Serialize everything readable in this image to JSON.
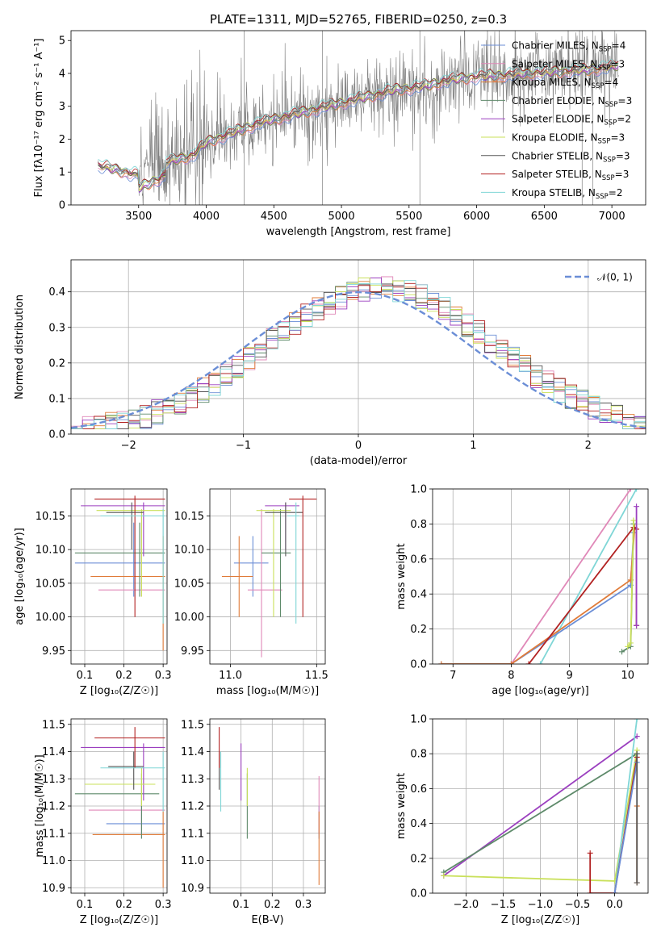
{
  "figure_title": "PLATE=1311, MJD=52765, FIBERID=0250, z=0.3",
  "models": [
    {
      "label": "Chabrier MILES",
      "nssp": "4",
      "color": "#6b8ed6"
    },
    {
      "label": "Salpeter MILES",
      "nssp": "3",
      "color": "#e088b8"
    },
    {
      "label": "Kroupa MILES",
      "nssp": "4",
      "color": "#e07b39"
    },
    {
      "label": "Chabrier ELODIE",
      "nssp": "3",
      "color": "#5e8a6a"
    },
    {
      "label": "Salpeter ELODIE",
      "nssp": "2",
      "color": "#9b3fbf"
    },
    {
      "label": "Kroupa ELODIE",
      "nssp": "3",
      "color": "#c9e05a"
    },
    {
      "label": "Chabrier STELIB",
      "nssp": "3",
      "color": "#555555"
    },
    {
      "label": "Salpeter STELIB",
      "nssp": "3",
      "color": "#b22222"
    },
    {
      "label": "Kroupa STELIB",
      "nssp": "2",
      "color": "#7fd6d6"
    }
  ],
  "chart_data": [
    {
      "type": "line",
      "xlabel": "wavelength [Angstrom, rest frame]",
      "ylabel": "Flux [fλ10⁻¹⁷ erg cm⁻² s⁻¹ A⁻¹]",
      "xlim": [
        3000,
        7250
      ],
      "ylim": [
        0,
        5.3
      ],
      "xticks": [
        3500,
        4000,
        4500,
        5000,
        5500,
        6000,
        6500,
        7000
      ],
      "yticks": [
        0,
        1,
        2,
        3,
        4,
        5
      ],
      "grid": false,
      "legend": "top-right",
      "continuum": [
        [
          3200,
          1.2
        ],
        [
          3500,
          0.9
        ],
        [
          3700,
          1.3
        ],
        [
          3900,
          1.5
        ],
        [
          4000,
          1.9
        ],
        [
          4200,
          2.2
        ],
        [
          4400,
          2.5
        ],
        [
          4600,
          2.7
        ],
        [
          4800,
          2.9
        ],
        [
          5000,
          3.1
        ],
        [
          5200,
          3.3
        ],
        [
          5400,
          3.5
        ],
        [
          5600,
          3.6
        ],
        [
          5800,
          3.8
        ],
        [
          6000,
          3.9
        ],
        [
          6200,
          3.95
        ],
        [
          6400,
          4.0
        ],
        [
          6600,
          4.05
        ],
        [
          6800,
          4.1
        ],
        [
          7000,
          4.2
        ],
        [
          7050,
          4.25
        ]
      ],
      "data_color": "#808080"
    },
    {
      "type": "step",
      "xlabel": "(data-model)/error",
      "ylabel": "Normed distribution",
      "xlim": [
        -2.5,
        2.5
      ],
      "ylim": [
        0,
        0.49
      ],
      "xticks": [
        -2,
        -1,
        0,
        1,
        2
      ],
      "yticks": [
        0.0,
        0.1,
        0.2,
        0.3,
        0.4
      ],
      "grid": true,
      "legend": "top-right",
      "gaussian_label": "𝒩(0, 1)",
      "gaussian_color": "#6b8ed6"
    },
    {
      "type": "errorbar",
      "xlabel": "Z [log₁₀(Z/Z☉)]",
      "ylabel": "age  [log₁₀(age/yr)]",
      "xlim": [
        0.065,
        0.31
      ],
      "ylim": [
        9.93,
        10.19
      ],
      "xticks": [
        0.1,
        0.2,
        0.3
      ],
      "yticks": [
        9.95,
        10.0,
        10.05,
        10.1,
        10.15
      ],
      "grid": true,
      "points": [
        {
          "m": 0,
          "x": 0.225,
          "xerr": [
            0.075,
            0.305
          ],
          "y": 10.08,
          "yerr": [
            10.03,
            10.14
          ]
        },
        {
          "m": 1,
          "x": 0.245,
          "xerr": [
            0.135,
            0.305
          ],
          "y": 10.04,
          "yerr": [
            10.03,
            10.15
          ]
        },
        {
          "m": 2,
          "x": 0.3,
          "xerr": [
            0.115,
            0.305
          ],
          "y": 10.06,
          "yerr": [
            9.95,
            10.12
          ]
        },
        {
          "m": 3,
          "x": 0.24,
          "xerr": [
            0.075,
            0.305
          ],
          "y": 10.095,
          "yerr": [
            10.03,
            10.14
          ]
        },
        {
          "m": 4,
          "x": 0.25,
          "xerr": [
            0.09,
            0.305
          ],
          "y": 10.165,
          "yerr": [
            10.09,
            10.17
          ]
        },
        {
          "m": 5,
          "x": 0.245,
          "xerr": [
            0.13,
            0.305
          ],
          "y": 10.158,
          "yerr": [
            10.03,
            10.16
          ]
        },
        {
          "m": 6,
          "x": 0.22,
          "xerr": [
            0.155,
            0.25
          ],
          "y": 10.155,
          "yerr": [
            10.1,
            10.17
          ]
        },
        {
          "m": 7,
          "x": 0.228,
          "xerr": [
            0.125,
            0.305
          ],
          "y": 10.175,
          "yerr": [
            10.0,
            10.18
          ]
        },
        {
          "m": 8,
          "x": 0.3,
          "xerr": [
            0.14,
            0.305
          ],
          "y": 10.15,
          "yerr": [
            9.99,
            10.16
          ]
        }
      ]
    },
    {
      "type": "errorbar",
      "xlabel": "mass [log₁₀(M/M☉)]",
      "ylabel": "",
      "xlim": [
        10.88,
        11.55
      ],
      "ylim": [
        9.93,
        10.19
      ],
      "xticks": [
        11.0,
        11.5
      ],
      "yticks": [
        9.95,
        10.0,
        10.05,
        10.1,
        10.15
      ],
      "grid": true,
      "points": [
        {
          "m": 0,
          "x": 11.13,
          "xerr": [
            11.02,
            11.22
          ],
          "y": 10.08,
          "yerr": [
            10.03,
            10.12
          ]
        },
        {
          "m": 1,
          "x": 11.18,
          "xerr": [
            11.1,
            11.3
          ],
          "y": 10.04,
          "yerr": [
            9.94,
            10.16
          ]
        },
        {
          "m": 2,
          "x": 11.05,
          "xerr": [
            10.95,
            11.13
          ],
          "y": 10.06,
          "yerr": [
            10.0,
            10.12
          ]
        },
        {
          "m": 3,
          "x": 11.29,
          "xerr": [
            11.18,
            11.35
          ],
          "y": 10.095,
          "yerr": [
            10.0,
            10.16
          ]
        },
        {
          "m": 4,
          "x": 11.32,
          "xerr": [
            11.2,
            11.4
          ],
          "y": 10.165,
          "yerr": [
            10.1,
            10.17
          ]
        },
        {
          "m": 5,
          "x": 11.25,
          "xerr": [
            11.15,
            11.35
          ],
          "y": 10.158,
          "yerr": [
            10.0,
            10.16
          ]
        },
        {
          "m": 6,
          "x": 11.32,
          "xerr": [
            11.2,
            11.42
          ],
          "y": 10.155,
          "yerr": [
            10.09,
            10.17
          ]
        },
        {
          "m": 7,
          "x": 11.42,
          "xerr": [
            11.34,
            11.5
          ],
          "y": 10.175,
          "yerr": [
            10.0,
            10.18
          ]
        },
        {
          "m": 8,
          "x": 11.38,
          "xerr": [
            11.33,
            11.4
          ],
          "y": 10.15,
          "yerr": [
            9.99,
            10.17
          ]
        }
      ]
    },
    {
      "type": "line",
      "xlabel": "age  [log₁₀(age/yr)]",
      "ylabel": "mass weight",
      "xlim": [
        6.65,
        10.35
      ],
      "ylim": [
        0,
        1.0
      ],
      "xticks": [
        7,
        8,
        9,
        10
      ],
      "yticks": [
        0.0,
        0.2,
        0.4,
        0.6,
        0.8,
        1.0
      ],
      "grid": true,
      "series": [
        {
          "m": 1,
          "x": [
            8.0,
            10.05
          ],
          "y": [
            0.0,
            1.0
          ]
        },
        {
          "m": 8,
          "x": [
            8.5,
            10.15
          ],
          "y": [
            0.0,
            1.0
          ]
        },
        {
          "m": 0,
          "x": [
            6.8,
            8.0,
            10.05,
            10.1
          ],
          "y": [
            0.0,
            0.0,
            0.45,
            0.75
          ]
        },
        {
          "m": 2,
          "x": [
            6.8,
            8.0,
            10.05,
            10.12
          ],
          "y": [
            0.0,
            0.0,
            0.48,
            0.78
          ]
        },
        {
          "m": 7,
          "x": [
            8.3,
            10.1,
            10.15,
            10.15
          ],
          "y": [
            0.0,
            0.78,
            0.77,
            0.22
          ]
        },
        {
          "m": 3,
          "x": [
            9.9,
            10.05,
            10.1
          ],
          "y": [
            0.07,
            0.1,
            0.8
          ]
        },
        {
          "m": 5,
          "x": [
            10.0,
            10.05,
            10.1
          ],
          "y": [
            0.1,
            0.12,
            0.82
          ]
        },
        {
          "m": 4,
          "x": [
            10.15,
            10.15
          ],
          "y": [
            0.22,
            0.9
          ]
        }
      ]
    },
    {
      "type": "errorbar",
      "xlabel": "Z [log₁₀(Z/Z☉)]",
      "ylabel": "mass [log₁₀(M/M☉)]",
      "xlim": [
        0.065,
        0.31
      ],
      "ylim": [
        10.88,
        11.52
      ],
      "xticks": [
        0.1,
        0.2,
        0.3
      ],
      "yticks": [
        10.9,
        11.0,
        11.1,
        11.2,
        11.3,
        11.4,
        11.5
      ],
      "grid": true,
      "points": [
        {
          "m": 0,
          "x": 0.245,
          "xerr": [
            0.155,
            0.305
          ],
          "y": 11.135,
          "yerr": [
            11.08,
            11.2
          ]
        },
        {
          "m": 1,
          "x": 0.245,
          "xerr": [
            0.11,
            0.305
          ],
          "y": 11.185,
          "yerr": [
            11.1,
            11.26
          ]
        },
        {
          "m": 2,
          "x": 0.3,
          "xerr": [
            0.12,
            0.305
          ],
          "y": 11.095,
          "yerr": [
            10.9,
            11.18
          ]
        },
        {
          "m": 3,
          "x": 0.245,
          "xerr": [
            0.075,
            0.29
          ],
          "y": 11.245,
          "yerr": [
            11.08,
            11.32
          ]
        },
        {
          "m": 4,
          "x": 0.25,
          "xerr": [
            0.09,
            0.305
          ],
          "y": 11.415,
          "yerr": [
            11.22,
            11.43
          ]
        },
        {
          "m": 5,
          "x": 0.245,
          "xerr": [
            0.1,
            0.28
          ],
          "y": 11.28,
          "yerr": [
            11.2,
            11.34
          ]
        },
        {
          "m": 6,
          "x": 0.225,
          "xerr": [
            0.16,
            0.25
          ],
          "y": 11.345,
          "yerr": [
            11.26,
            11.4
          ]
        },
        {
          "m": 7,
          "x": 0.228,
          "xerr": [
            0.125,
            0.305
          ],
          "y": 11.45,
          "yerr": [
            11.34,
            11.49
          ]
        },
        {
          "m": 8,
          "x": 0.3,
          "xerr": [
            0.14,
            0.305
          ],
          "y": 11.34,
          "yerr": [
            11.18,
            11.4
          ]
        }
      ]
    },
    {
      "type": "errorbar",
      "xlabel": "E(B-V)",
      "ylabel": "",
      "xlim": [
        0.0,
        0.37
      ],
      "ylim": [
        10.88,
        11.52
      ],
      "xticks": [
        0.1,
        0.2,
        0.3
      ],
      "yticks": [
        10.9,
        11.0,
        11.1,
        11.2,
        11.3,
        11.4,
        11.5
      ],
      "grid": true,
      "points": [
        {
          "m": 0,
          "x": 0.35,
          "xerr": [
            0.35,
            0.35
          ],
          "y": 11.135,
          "yerr": [
            11.08,
            11.2
          ]
        },
        {
          "m": 1,
          "x": 0.35,
          "xerr": [
            0.35,
            0.35
          ],
          "y": 11.185,
          "yerr": [
            11.1,
            11.31
          ]
        },
        {
          "m": 2,
          "x": 0.35,
          "xerr": [
            0.35,
            0.35
          ],
          "y": 11.095,
          "yerr": [
            10.91,
            11.18
          ]
        },
        {
          "m": 3,
          "x": 0.12,
          "xerr": [
            0.12,
            0.12
          ],
          "y": 11.245,
          "yerr": [
            11.08,
            11.32
          ]
        },
        {
          "m": 4,
          "x": 0.1,
          "xerr": [
            0.1,
            0.1
          ],
          "y": 11.415,
          "yerr": [
            11.22,
            11.43
          ]
        },
        {
          "m": 5,
          "x": 0.12,
          "xerr": [
            0.12,
            0.12
          ],
          "y": 11.28,
          "yerr": [
            11.2,
            11.34
          ]
        },
        {
          "m": 6,
          "x": 0.03,
          "xerr": [
            0.03,
            0.03
          ],
          "y": 11.345,
          "yerr": [
            11.26,
            11.4
          ]
        },
        {
          "m": 7,
          "x": 0.03,
          "xerr": [
            0.03,
            0.03
          ],
          "y": 11.45,
          "yerr": [
            11.34,
            11.49
          ]
        },
        {
          "m": 8,
          "x": 0.035,
          "xerr": [
            0.035,
            0.035
          ],
          "y": 11.34,
          "yerr": [
            11.18,
            11.4
          ]
        }
      ]
    },
    {
      "type": "line",
      "xlabel": "Z [log₁₀(Z/Z☉)]",
      "ylabel": "mass weight",
      "xlim": [
        -2.45,
        0.45
      ],
      "ylim": [
        0,
        1.0
      ],
      "xticks": [
        -2.0,
        -1.5,
        -1.0,
        -0.5,
        0.0
      ],
      "yticks": [
        0.0,
        0.2,
        0.4,
        0.6,
        0.8,
        1.0
      ],
      "grid": true,
      "series": [
        {
          "m": 4,
          "x": [
            -2.3,
            0.3
          ],
          "y": [
            0.1,
            0.9
          ]
        },
        {
          "m": 3,
          "x": [
            -2.3,
            0.3
          ],
          "y": [
            0.12,
            0.8
          ]
        },
        {
          "m": 5,
          "x": [
            -2.3,
            0.0,
            0.3
          ],
          "y": [
            0.1,
            0.07,
            0.82
          ]
        },
        {
          "m": 8,
          "x": [
            0.0,
            0.3
          ],
          "y": [
            0.0,
            1.0
          ]
        },
        {
          "m": 7,
          "x": [
            -0.33,
            -0.33,
            0.0,
            0.3
          ],
          "y": [
            0.23,
            0.0,
            0.0,
            0.78
          ]
        },
        {
          "m": 0,
          "x": [
            0.0,
            0.3
          ],
          "y": [
            0.0,
            0.75
          ]
        },
        {
          "m": 2,
          "x": [
            0.3,
            0.3
          ],
          "y": [
            0.06,
            0.5
          ]
        },
        {
          "m": 6,
          "x": [
            0.3,
            0.3
          ],
          "y": [
            0.06,
            0.8
          ]
        }
      ]
    }
  ]
}
